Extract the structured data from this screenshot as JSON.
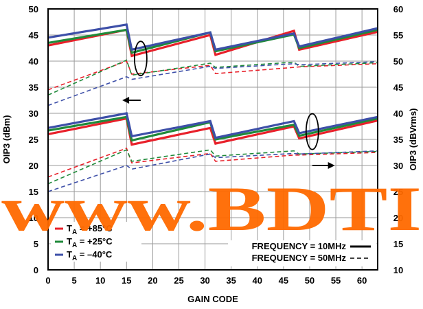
{
  "chart_data": {
    "type": "line",
    "title": "",
    "xlabel": "GAIN CODE",
    "ylabel_left": "OIP3 (dBm)",
    "ylabel_right": "OIP3 (dBVrms)",
    "xlim": [
      0,
      63
    ],
    "ylim_left": [
      0,
      50
    ],
    "ylim_right": [
      10,
      60
    ],
    "x_ticks": [
      "0",
      "5",
      "10",
      "15",
      "20",
      "25",
      "30",
      "35",
      "40",
      "45",
      "50",
      "55",
      "60"
    ],
    "y_left_ticks": [
      "0",
      "5",
      "10",
      "15",
      "20",
      "25",
      "30",
      "35",
      "40",
      "45",
      "50"
    ],
    "y_right_ticks": [
      "10",
      "15",
      "20",
      "25",
      "30",
      "35",
      "40",
      "45",
      "50",
      "55",
      "60"
    ],
    "grid": true,
    "colors": {
      "red": "#e8202a",
      "green": "#1f8a3a",
      "blue": "#3d4fa8"
    },
    "legend_temperature": [
      {
        "label": "T",
        "sub": "A",
        "rest": " = +85°C",
        "color": "#e8202a"
      },
      {
        "label": "T",
        "sub": "A",
        "rest": " = +25°C",
        "color": "#1f8a3a"
      },
      {
        "label": "T",
        "sub": "A",
        "rest": " = –40°C",
        "color": "#3d4fa8"
      }
    ],
    "legend_frequency": [
      {
        "label": "FREQUENCY = 10MHz",
        "style": "solid"
      },
      {
        "label": "FREQUENCY = 50MHz",
        "style": "dashed"
      }
    ],
    "series": [
      {
        "name": "TA = +85°C, FREQUENCY = 10MHz",
        "axis": "left",
        "style": "solid",
        "color": "#e8202a",
        "x": [
          0,
          15,
          16,
          31,
          32,
          47,
          48,
          63
        ],
        "y": [
          43,
          46,
          41,
          45,
          41.2,
          45.8,
          42.2,
          45.6
        ]
      },
      {
        "name": "TA = +25°C, FREQUENCY = 10MHz",
        "axis": "left",
        "style": "solid",
        "color": "#1f8a3a",
        "x": [
          0,
          15,
          16,
          31,
          32,
          47,
          48,
          63
        ],
        "y": [
          43.5,
          46,
          41.6,
          45.5,
          41.9,
          45.1,
          42.5,
          46
        ]
      },
      {
        "name": "TA = -40°C, FREQUENCY = 10MHz",
        "axis": "left",
        "style": "solid",
        "color": "#3d4fa8",
        "x": [
          0,
          15,
          16,
          31,
          32,
          47,
          48,
          63
        ],
        "y": [
          44.5,
          47,
          42.2,
          45.5,
          42.2,
          45.3,
          42.8,
          46.3
        ]
      },
      {
        "name": "TA = +85°C, FREQUENCY = 50MHz",
        "axis": "left",
        "style": "dashed",
        "color": "#e8202a",
        "x": [
          0,
          15,
          16,
          31,
          32,
          47,
          48,
          63
        ],
        "y": [
          34.5,
          40,
          37.5,
          39.2,
          37.6,
          38.8,
          38.9,
          39.5
        ]
      },
      {
        "name": "TA = +25°C, FREQUENCY = 50MHz",
        "axis": "left",
        "style": "dashed",
        "color": "#1f8a3a",
        "x": [
          0,
          15,
          16,
          31,
          32,
          47,
          48,
          63
        ],
        "y": [
          33.5,
          40.2,
          37.3,
          39.6,
          38.8,
          39.8,
          39,
          39.7
        ]
      },
      {
        "name": "TA = -40°C, FREQUENCY = 50MHz",
        "axis": "left",
        "style": "dashed",
        "color": "#3d4fa8",
        "x": [
          0,
          15,
          16,
          31,
          32,
          47,
          48,
          63
        ],
        "y": [
          31.5,
          37,
          36.5,
          39,
          38.6,
          39.5,
          39.3,
          39.9
        ]
      },
      {
        "name": "TA = +85°C, FREQUENCY = 10MHz",
        "axis": "right",
        "style": "solid",
        "color": "#e8202a",
        "x": [
          0,
          15,
          16,
          31,
          32,
          47,
          48,
          63
        ],
        "y": [
          36,
          39,
          34,
          37.2,
          34.2,
          37.5,
          35.2,
          38.6
        ]
      },
      {
        "name": "TA = +25°C, FREQUENCY = 10MHz",
        "axis": "right",
        "style": "solid",
        "color": "#1f8a3a",
        "x": [
          0,
          15,
          16,
          31,
          32,
          47,
          48,
          63
        ],
        "y": [
          36.7,
          39.3,
          34.8,
          38.3,
          35,
          37.8,
          35.7,
          39
        ]
      },
      {
        "name": "TA = -40°C, FREQUENCY = 10MHz",
        "axis": "right",
        "style": "solid",
        "color": "#3d4fa8",
        "x": [
          0,
          15,
          16,
          31,
          32,
          47,
          48,
          63
        ],
        "y": [
          37.2,
          40,
          35.6,
          38.5,
          35.3,
          38.5,
          36.2,
          39.3
        ]
      },
      {
        "name": "TA = +85°C, FREQUENCY = 50MHz",
        "axis": "right",
        "style": "dashed",
        "color": "#e8202a",
        "x": [
          0,
          15,
          16,
          31,
          32,
          47,
          48,
          63
        ],
        "y": [
          27.8,
          33.3,
          30.5,
          32.3,
          30.8,
          32,
          32,
          32.5
        ]
      },
      {
        "name": "TA = +25°C, FREQUENCY = 50MHz",
        "axis": "right",
        "style": "dashed",
        "color": "#1f8a3a",
        "x": [
          0,
          15,
          16,
          31,
          32,
          47,
          48,
          63
        ],
        "y": [
          26.5,
          33,
          30.8,
          33,
          31.8,
          32.8,
          32.2,
          32.7
        ]
      },
      {
        "name": "TA = -40°C, FREQUENCY = 50MHz",
        "axis": "right",
        "style": "dashed",
        "color": "#3d4fa8",
        "x": [
          0,
          15,
          16,
          31,
          32,
          47,
          48,
          63
        ],
        "y": [
          25,
          30,
          29.3,
          32.2,
          31.5,
          32.3,
          32.2,
          32.8
        ]
      }
    ],
    "annotations": [
      {
        "text": "www.BDTI",
        "kind": "watermark"
      }
    ]
  }
}
